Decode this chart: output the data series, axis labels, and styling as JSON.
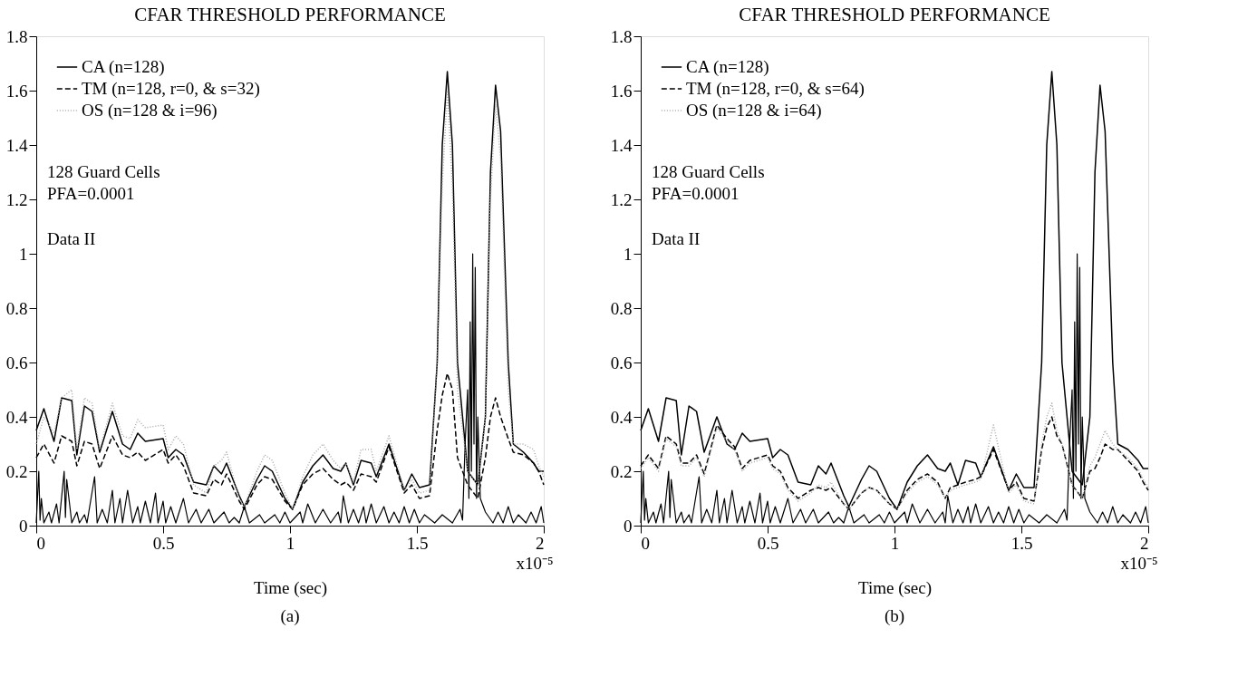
{
  "chart_data": [
    {
      "type": "line",
      "title": "CFAR THRESHOLD PERFORMANCE",
      "xlabel": "Time (sec)",
      "xlim": [
        0,
        2
      ],
      "xticks": [
        0,
        0.5,
        1,
        1.5,
        2
      ],
      "ylim": [
        0,
        1.8
      ],
      "yticks": [
        0,
        0.2,
        0.4,
        0.6,
        0.8,
        1,
        1.2,
        1.4,
        1.6,
        1.8
      ],
      "grid": false,
      "legend": "top left",
      "marker": "none",
      "annotations": [
        "128 Guard Cells",
        "PFA=0.0001",
        "Data II",
        "x10⁻⁵",
        "(a)"
      ],
      "x": [
        0,
        0.03,
        0.07,
        0.1,
        0.14,
        0.16,
        0.19,
        0.22,
        0.25,
        0.3,
        0.34,
        0.37,
        0.4,
        0.43,
        0.5,
        0.52,
        0.55,
        0.58,
        0.62,
        0.67,
        0.7,
        0.73,
        0.75,
        0.8,
        0.82,
        0.87,
        0.9,
        0.93,
        0.98,
        1.01,
        1.05,
        1.09,
        1.13,
        1.17,
        1.2,
        1.22,
        1.25,
        1.28,
        1.32,
        1.34,
        1.39,
        1.45,
        1.48,
        1.51,
        1.55,
        1.58,
        1.6,
        1.62,
        1.64,
        1.66,
        1.7,
        1.74,
        1.77,
        1.79,
        1.81,
        1.83,
        1.86,
        1.88,
        1.92,
        1.96,
        1.98,
        2
      ],
      "series": [
        {
          "name": "CA (n=128)",
          "color": "#000000",
          "line_style": "solid",
          "values": [
            0.35,
            0.43,
            0.31,
            0.47,
            0.46,
            0.26,
            0.44,
            0.42,
            0.27,
            0.42,
            0.3,
            0.28,
            0.34,
            0.31,
            0.32,
            0.25,
            0.28,
            0.26,
            0.16,
            0.15,
            0.22,
            0.19,
            0.23,
            0.11,
            0.07,
            0.17,
            0.22,
            0.2,
            0.1,
            0.06,
            0.16,
            0.22,
            0.26,
            0.21,
            0.2,
            0.23,
            0.15,
            0.24,
            0.23,
            0.18,
            0.3,
            0.13,
            0.19,
            0.14,
            0.15,
            0.6,
            1.4,
            1.67,
            1.4,
            0.6,
            0.2,
            0.15,
            0.4,
            1.3,
            1.62,
            1.45,
            0.6,
            0.3,
            0.27,
            0.23,
            0.2,
            0.2
          ]
        },
        {
          "name": "TM (n=128, r=0, & s=32)",
          "color": "#000000",
          "line_style": "dashed",
          "values": [
            0.25,
            0.3,
            0.23,
            0.33,
            0.31,
            0.22,
            0.31,
            0.3,
            0.21,
            0.33,
            0.26,
            0.25,
            0.27,
            0.24,
            0.28,
            0.23,
            0.26,
            0.22,
            0.12,
            0.11,
            0.17,
            0.15,
            0.19,
            0.09,
            0.06,
            0.15,
            0.18,
            0.17,
            0.09,
            0.06,
            0.15,
            0.19,
            0.21,
            0.17,
            0.15,
            0.16,
            0.13,
            0.19,
            0.18,
            0.16,
            0.29,
            0.12,
            0.15,
            0.1,
            0.11,
            0.35,
            0.48,
            0.56,
            0.5,
            0.25,
            0.15,
            0.1,
            0.25,
            0.4,
            0.47,
            0.4,
            0.32,
            0.27,
            0.26,
            0.23,
            0.2,
            0.15
          ]
        },
        {
          "name": "OS (n=128 & i=96)",
          "color": "#aaaaaa",
          "line_style": "dotted",
          "values": [
            0.3,
            0.4,
            0.34,
            0.47,
            0.5,
            0.28,
            0.47,
            0.45,
            0.28,
            0.45,
            0.33,
            0.32,
            0.39,
            0.36,
            0.37,
            0.28,
            0.33,
            0.3,
            0.15,
            0.12,
            0.22,
            0.24,
            0.27,
            0.1,
            0.07,
            0.2,
            0.26,
            0.24,
            0.12,
            0.06,
            0.18,
            0.26,
            0.3,
            0.24,
            0.21,
            0.23,
            0.16,
            0.28,
            0.28,
            0.2,
            0.33,
            0.13,
            0.17,
            0.12,
            0.13,
            0.6,
            1.25,
            1.6,
            1.25,
            0.5,
            0.2,
            0.15,
            0.4,
            1.2,
            1.55,
            1.35,
            0.5,
            0.3,
            0.3,
            0.28,
            0.22,
            0.18
          ]
        },
        {
          "color": "#000000",
          "line_style": "solid",
          "x": [
            0,
            0.01,
            0.015,
            0.02,
            0.03,
            0.05,
            0.06,
            0.08,
            0.09,
            0.11,
            0.115,
            0.12,
            0.14,
            0.16,
            0.17,
            0.19,
            0.2,
            0.23,
            0.24,
            0.26,
            0.28,
            0.3,
            0.31,
            0.33,
            0.34,
            0.36,
            0.38,
            0.4,
            0.41,
            0.43,
            0.45,
            0.47,
            0.48,
            0.5,
            0.51,
            0.53,
            0.55,
            0.58,
            0.6,
            0.63,
            0.65,
            0.68,
            0.7,
            0.74,
            0.76,
            0.78,
            0.8,
            0.82,
            0.84,
            0.88,
            0.9,
            0.94,
            0.96,
            0.98,
            1.0,
            1.04,
            1.05,
            1.07,
            1.1,
            1.13,
            1.16,
            1.19,
            1.2,
            1.21,
            1.23,
            1.25,
            1.27,
            1.29,
            1.3,
            1.32,
            1.34,
            1.37,
            1.39,
            1.41,
            1.43,
            1.45,
            1.47,
            1.49,
            1.51,
            1.53,
            1.57,
            1.6,
            1.64,
            1.67,
            1.68,
            1.69,
            1.7,
            1.705,
            1.71,
            1.715,
            1.72,
            1.725,
            1.73,
            1.735,
            1.74,
            1.75,
            1.77,
            1.8,
            1.82,
            1.84,
            1.86,
            1.88,
            1.9,
            1.93,
            1.95,
            1.97,
            1.99,
            2
          ],
          "values": [
            0.01,
            0.2,
            0.02,
            0.1,
            0.01,
            0.05,
            0.01,
            0.08,
            0.01,
            0.2,
            0.03,
            0.17,
            0.01,
            0.05,
            0.01,
            0.04,
            0.01,
            0.18,
            0.01,
            0.06,
            0.01,
            0.13,
            0.01,
            0.1,
            0.01,
            0.13,
            0.01,
            0.07,
            0.01,
            0.09,
            0.01,
            0.12,
            0.01,
            0.09,
            0.01,
            0.07,
            0.01,
            0.1,
            0.01,
            0.06,
            0.01,
            0.06,
            0.01,
            0.05,
            0.01,
            0.03,
            0.01,
            0.07,
            0.01,
            0.04,
            0.01,
            0.04,
            0.01,
            0.05,
            0.01,
            0.05,
            0.01,
            0.08,
            0.01,
            0.06,
            0.01,
            0.05,
            0.01,
            0.11,
            0.01,
            0.06,
            0.01,
            0.07,
            0.01,
            0.08,
            0.01,
            0.07,
            0.01,
            0.05,
            0.01,
            0.07,
            0.01,
            0.06,
            0.01,
            0.04,
            0.01,
            0.04,
            0.01,
            0.06,
            0.02,
            0.3,
            0.5,
            0.1,
            0.75,
            0.2,
            1.0,
            0.3,
            0.95,
            0.1,
            0.4,
            0.1,
            0.05,
            0.01,
            0.05,
            0.01,
            0.07,
            0.01,
            0.04,
            0.01,
            0.05,
            0.01,
            0.07,
            0.01
          ]
        }
      ]
    },
    {
      "type": "line",
      "title": "CFAR THRESHOLD PERFORMANCE",
      "xlabel": "Time (sec)",
      "xlim": [
        0,
        2
      ],
      "xticks": [
        0,
        0.5,
        1,
        1.5,
        2
      ],
      "ylim": [
        0,
        1.8
      ],
      "yticks": [
        0,
        0.2,
        0.4,
        0.6,
        0.8,
        1,
        1.2,
        1.4,
        1.6,
        1.8
      ],
      "grid": false,
      "legend": "top left",
      "marker": "none",
      "annotations": [
        "128 Guard Cells",
        "PFA=0.0001",
        "Data II",
        "x10⁻⁵",
        "(b)"
      ],
      "x": [
        0,
        0.03,
        0.07,
        0.1,
        0.14,
        0.16,
        0.19,
        0.22,
        0.25,
        0.3,
        0.34,
        0.37,
        0.4,
        0.43,
        0.5,
        0.52,
        0.55,
        0.58,
        0.62,
        0.67,
        0.7,
        0.73,
        0.75,
        0.8,
        0.82,
        0.87,
        0.9,
        0.93,
        0.98,
        1.01,
        1.05,
        1.09,
        1.13,
        1.17,
        1.2,
        1.22,
        1.25,
        1.28,
        1.32,
        1.34,
        1.39,
        1.45,
        1.48,
        1.51,
        1.55,
        1.58,
        1.6,
        1.62,
        1.64,
        1.66,
        1.7,
        1.74,
        1.77,
        1.79,
        1.81,
        1.83,
        1.86,
        1.88,
        1.92,
        1.96,
        1.98,
        2
      ],
      "series": [
        {
          "name": "CA (n=128)",
          "color": "#000000",
          "line_style": "solid",
          "values": [
            0.35,
            0.43,
            0.31,
            0.47,
            0.46,
            0.26,
            0.44,
            0.42,
            0.27,
            0.4,
            0.3,
            0.28,
            0.34,
            0.31,
            0.32,
            0.25,
            0.28,
            0.26,
            0.16,
            0.15,
            0.22,
            0.19,
            0.23,
            0.11,
            0.07,
            0.17,
            0.22,
            0.2,
            0.1,
            0.06,
            0.16,
            0.22,
            0.26,
            0.21,
            0.2,
            0.23,
            0.15,
            0.24,
            0.23,
            0.18,
            0.29,
            0.13,
            0.19,
            0.14,
            0.14,
            0.6,
            1.4,
            1.67,
            1.4,
            0.6,
            0.2,
            0.15,
            0.4,
            1.3,
            1.62,
            1.45,
            0.6,
            0.3,
            0.28,
            0.24,
            0.21,
            0.21
          ]
        },
        {
          "name": "TM (n=128, r=0, & s=64)",
          "color": "#000000",
          "line_style": "dashed",
          "values": [
            0.22,
            0.26,
            0.21,
            0.33,
            0.3,
            0.23,
            0.23,
            0.26,
            0.19,
            0.37,
            0.32,
            0.29,
            0.21,
            0.24,
            0.26,
            0.22,
            0.2,
            0.14,
            0.1,
            0.13,
            0.14,
            0.13,
            0.14,
            0.08,
            0.06,
            0.12,
            0.14,
            0.13,
            0.08,
            0.06,
            0.13,
            0.17,
            0.19,
            0.16,
            0.1,
            0.14,
            0.15,
            0.16,
            0.17,
            0.18,
            0.28,
            0.13,
            0.16,
            0.1,
            0.09,
            0.28,
            0.36,
            0.4,
            0.33,
            0.3,
            0.15,
            0.1,
            0.2,
            0.21,
            0.25,
            0.3,
            0.28,
            0.28,
            0.24,
            0.2,
            0.16,
            0.13
          ]
        },
        {
          "name": "OS (n=128 & i=64)",
          "color": "#aaaaaa",
          "line_style": "dotted",
          "values": [
            0.21,
            0.25,
            0.2,
            0.32,
            0.29,
            0.22,
            0.22,
            0.25,
            0.18,
            0.36,
            0.31,
            0.28,
            0.2,
            0.23,
            0.25,
            0.21,
            0.19,
            0.13,
            0.09,
            0.12,
            0.15,
            0.14,
            0.16,
            0.08,
            0.06,
            0.12,
            0.14,
            0.13,
            0.08,
            0.06,
            0.12,
            0.16,
            0.18,
            0.15,
            0.1,
            0.13,
            0.14,
            0.15,
            0.16,
            0.17,
            0.37,
            0.12,
            0.15,
            0.09,
            0.08,
            0.3,
            0.4,
            0.45,
            0.35,
            0.3,
            0.15,
            0.1,
            0.22,
            0.25,
            0.3,
            0.35,
            0.3,
            0.28,
            0.25,
            0.21,
            0.17,
            0.14
          ]
        },
        {
          "color": "#000000",
          "line_style": "solid",
          "x": [
            0,
            0.01,
            0.015,
            0.02,
            0.03,
            0.05,
            0.06,
            0.08,
            0.09,
            0.11,
            0.115,
            0.12,
            0.14,
            0.16,
            0.17,
            0.19,
            0.2,
            0.23,
            0.24,
            0.26,
            0.28,
            0.3,
            0.31,
            0.33,
            0.34,
            0.36,
            0.38,
            0.4,
            0.41,
            0.43,
            0.45,
            0.47,
            0.48,
            0.5,
            0.51,
            0.53,
            0.55,
            0.58,
            0.6,
            0.63,
            0.65,
            0.68,
            0.7,
            0.74,
            0.76,
            0.78,
            0.8,
            0.82,
            0.84,
            0.88,
            0.9,
            0.94,
            0.96,
            0.98,
            1.0,
            1.04,
            1.05,
            1.07,
            1.1,
            1.13,
            1.16,
            1.19,
            1.2,
            1.21,
            1.23,
            1.25,
            1.27,
            1.29,
            1.3,
            1.32,
            1.34,
            1.37,
            1.39,
            1.41,
            1.43,
            1.45,
            1.47,
            1.49,
            1.51,
            1.53,
            1.57,
            1.6,
            1.64,
            1.67,
            1.68,
            1.69,
            1.7,
            1.705,
            1.71,
            1.715,
            1.72,
            1.725,
            1.73,
            1.735,
            1.74,
            1.75,
            1.77,
            1.8,
            1.82,
            1.84,
            1.86,
            1.88,
            1.9,
            1.93,
            1.95,
            1.97,
            1.99,
            2
          ],
          "values": [
            0.01,
            0.2,
            0.02,
            0.1,
            0.01,
            0.05,
            0.01,
            0.08,
            0.01,
            0.2,
            0.03,
            0.17,
            0.01,
            0.05,
            0.01,
            0.04,
            0.01,
            0.18,
            0.01,
            0.06,
            0.01,
            0.13,
            0.01,
            0.1,
            0.01,
            0.13,
            0.01,
            0.07,
            0.01,
            0.09,
            0.01,
            0.12,
            0.01,
            0.09,
            0.01,
            0.07,
            0.01,
            0.1,
            0.01,
            0.06,
            0.01,
            0.06,
            0.01,
            0.05,
            0.01,
            0.03,
            0.01,
            0.07,
            0.01,
            0.04,
            0.01,
            0.04,
            0.01,
            0.05,
            0.01,
            0.05,
            0.01,
            0.08,
            0.01,
            0.06,
            0.01,
            0.05,
            0.01,
            0.11,
            0.01,
            0.06,
            0.01,
            0.07,
            0.01,
            0.08,
            0.01,
            0.07,
            0.01,
            0.05,
            0.01,
            0.07,
            0.01,
            0.06,
            0.01,
            0.04,
            0.01,
            0.04,
            0.01,
            0.06,
            0.02,
            0.3,
            0.5,
            0.1,
            0.75,
            0.2,
            1.0,
            0.3,
            0.95,
            0.1,
            0.4,
            0.1,
            0.05,
            0.01,
            0.05,
            0.01,
            0.07,
            0.01,
            0.04,
            0.01,
            0.05,
            0.01,
            0.07,
            0.01
          ]
        }
      ]
    }
  ]
}
